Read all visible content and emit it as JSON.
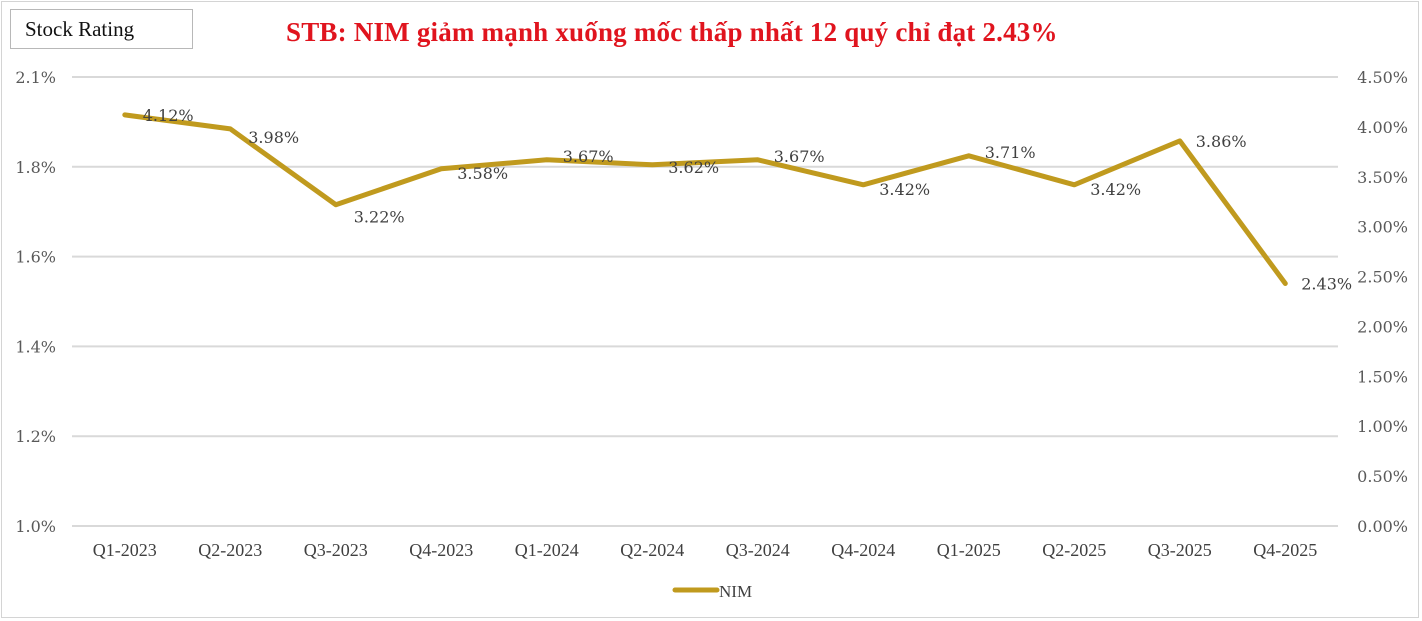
{
  "header": {
    "badge_label": "Stock Rating",
    "title": "STB: NIM giảm mạnh xuống mốc thấp nhất 12 quý chỉ đạt 2.43%"
  },
  "colors": {
    "line": "#c09a1e",
    "title": "#e0141e",
    "grid": "#d9d9d9",
    "axis_text": "#595959"
  },
  "left_axis": {
    "ticks": [
      "2.1%",
      "1.8%",
      "1.6%",
      "1.4%",
      "1.2%",
      "1.0%"
    ]
  },
  "right_axis": {
    "ticks": [
      "4.50%",
      "4.00%",
      "3.50%",
      "3.00%",
      "2.50%",
      "2.00%",
      "1.50%",
      "1.00%",
      "0.50%",
      "0.00%"
    ]
  },
  "legend": {
    "label": "NIM"
  },
  "chart_data": {
    "type": "line",
    "title": "STB: NIM giảm mạnh xuống mốc thấp nhất 12 quý chỉ đạt 2.43%",
    "xlabel": "",
    "ylabel": "",
    "categories": [
      "Q1-2023",
      "Q2-2023",
      "Q3-2023",
      "Q4-2023",
      "Q1-2024",
      "Q2-2024",
      "Q3-2024",
      "Q4-2024",
      "Q1-2025",
      "Q2-2025",
      "Q3-2025",
      "Q4-2025"
    ],
    "series": [
      {
        "name": "NIM",
        "axis": "secondary",
        "values": [
          4.12,
          3.98,
          3.22,
          3.58,
          3.67,
          3.62,
          3.67,
          3.42,
          3.71,
          3.42,
          3.86,
          2.43
        ],
        "labels": [
          "4.12%",
          "3.98%",
          "3.22%",
          "3.58%",
          "3.67%",
          "3.62%",
          "3.67%",
          "3.42%",
          "3.71%",
          "3.42%",
          "3.86%",
          "2.43%"
        ]
      }
    ],
    "primary_axis": {
      "ticks": [
        "2.1%",
        "1.8%",
        "1.6%",
        "1.4%",
        "1.2%",
        "1.0%"
      ]
    },
    "secondary_axis": {
      "ylim": [
        0,
        4.5
      ],
      "step": 0.5,
      "format": "0.00%"
    },
    "grid": true,
    "legend_position": "bottom"
  }
}
